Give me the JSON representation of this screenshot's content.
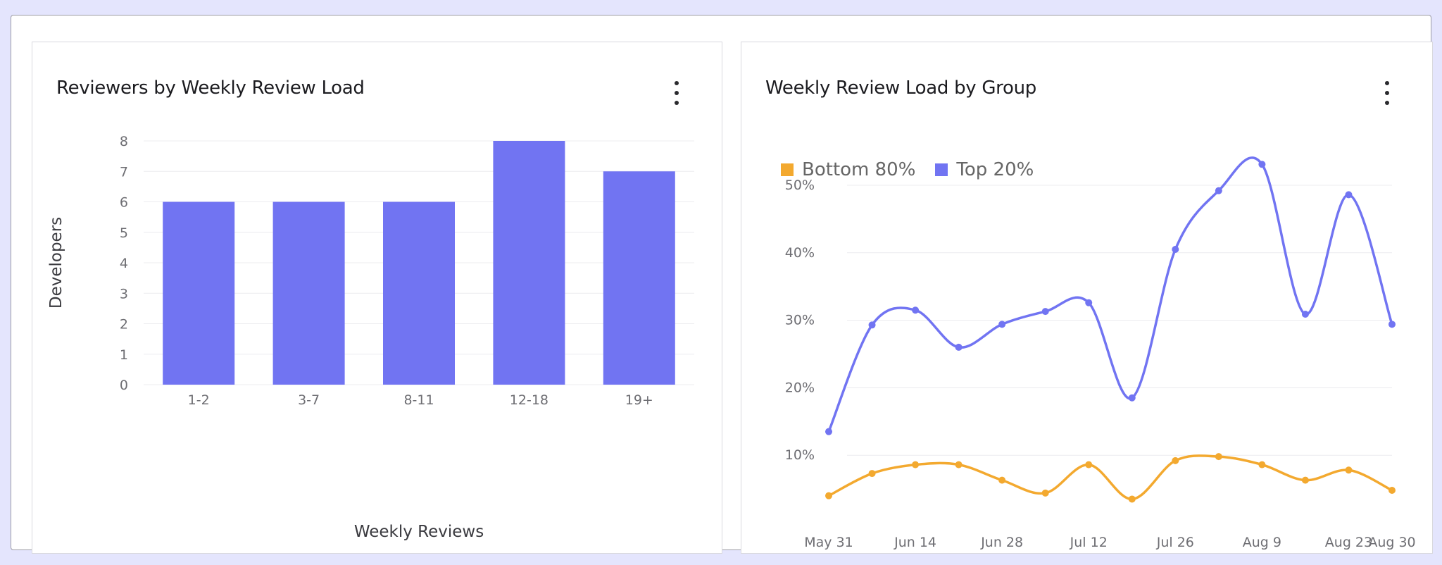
{
  "bar_card": {
    "title": "Reviewers by Weekly Review Load",
    "menu_icon": "more-vertical-icon"
  },
  "line_card": {
    "title": "Weekly Review Load by Group",
    "menu_icon": "more-vertical-icon"
  },
  "colors": {
    "bar": "#7174f2",
    "top20": "#7174f2",
    "bottom80": "#f3a92f",
    "grid": "#ececef",
    "tick": "#6e6e73"
  },
  "chart_data": [
    {
      "type": "bar",
      "title": "Reviewers by Weekly Review Load",
      "xlabel": "Weekly Reviews",
      "ylabel": "Developers",
      "categories": [
        "1-2",
        "3-7",
        "8-11",
        "12-18",
        "19+"
      ],
      "values": [
        6,
        6,
        6,
        8,
        7
      ],
      "ylim": [
        0,
        8
      ],
      "yticks": [
        0,
        1,
        2,
        3,
        4,
        5,
        6,
        7,
        8
      ],
      "grid": true
    },
    {
      "type": "line",
      "title": "Weekly Review Load by Group",
      "x": [
        "May 31",
        "Jun 7",
        "Jun 14",
        "Jun 21",
        "Jun 28",
        "Jul 5",
        "Jul 12",
        "Jul 19",
        "Jul 26",
        "Aug 2",
        "Aug 9",
        "Aug 16",
        "Aug 23",
        "Aug 30"
      ],
      "xtick_labels": [
        "May 31",
        "Jun 14",
        "Jun 28",
        "Jul 12",
        "Jul 26",
        "Aug 9",
        "Aug 23",
        "Aug 30"
      ],
      "series": [
        {
          "name": "Bottom 80%",
          "values": [
            4.0,
            7.3,
            8.6,
            8.6,
            6.3,
            4.4,
            8.6,
            3.5,
            9.2,
            9.8,
            8.6,
            6.3,
            7.8,
            4.8
          ]
        },
        {
          "name": "Top 20%",
          "values": [
            13.5,
            29.3,
            31.5,
            26.0,
            29.4,
            31.3,
            32.6,
            18.5,
            40.5,
            49.2,
            53.1,
            30.9,
            48.6,
            29.4
          ]
        }
      ],
      "yticks": [
        "10%",
        "20%",
        "30%",
        "40%",
        "50%"
      ],
      "ylim": [
        0,
        55
      ],
      "legend": "top-left",
      "grid": true
    }
  ]
}
